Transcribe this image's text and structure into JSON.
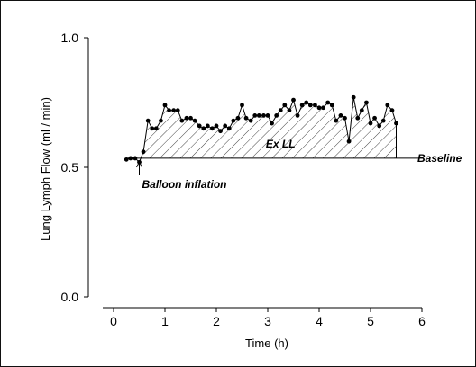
{
  "chart_data": {
    "type": "line",
    "title": "",
    "xlabel": "Time (h)",
    "ylabel": "Lung Lymph Flow (ml / min)",
    "xlim": [
      0,
      6
    ],
    "ylim": [
      0,
      1
    ],
    "x_ticks": [
      "0",
      "1",
      "2",
      "3",
      "4",
      "5",
      "6"
    ],
    "y_ticks": [
      "0.0",
      "0.5",
      "1.0"
    ],
    "grid": false,
    "baseline": 0.535,
    "baseline_end_x": 6.0,
    "shaded_region": {
      "label": "Ex LL",
      "x_start": 0.58,
      "x_end": 5.5
    },
    "annotations": {
      "balloon_inflation": {
        "label": "Balloon inflation",
        "x": 0.5
      },
      "baseline": {
        "label": "Baseline"
      }
    },
    "series": [
      {
        "x": [
          0.25,
          0.33,
          0.42,
          0.5,
          0.58,
          0.67,
          0.75,
          0.83,
          0.92,
          1.0,
          1.08,
          1.17,
          1.25,
          1.33,
          1.42,
          1.5,
          1.58,
          1.67,
          1.75,
          1.83,
          1.92,
          2.0,
          2.08,
          2.17,
          2.25,
          2.33,
          2.42,
          2.5,
          2.58,
          2.67,
          2.75,
          2.83,
          2.92,
          3.0,
          3.08,
          3.17,
          3.25,
          3.33,
          3.42,
          3.5,
          3.58,
          3.67,
          3.75,
          3.83,
          3.92,
          4.0,
          4.08,
          4.17,
          4.25,
          4.33,
          4.42,
          4.5,
          4.58,
          4.67,
          4.75,
          4.83,
          4.92,
          5.0,
          5.08,
          5.17,
          5.25,
          5.33,
          5.42,
          5.5
        ],
        "y": [
          0.53,
          0.535,
          0.535,
          0.52,
          0.56,
          0.68,
          0.65,
          0.65,
          0.68,
          0.74,
          0.72,
          0.72,
          0.72,
          0.68,
          0.69,
          0.69,
          0.68,
          0.66,
          0.65,
          0.66,
          0.65,
          0.66,
          0.64,
          0.66,
          0.65,
          0.68,
          0.69,
          0.74,
          0.69,
          0.68,
          0.7,
          0.7,
          0.7,
          0.7,
          0.67,
          0.7,
          0.72,
          0.74,
          0.72,
          0.76,
          0.7,
          0.74,
          0.75,
          0.74,
          0.74,
          0.73,
          0.73,
          0.75,
          0.74,
          0.68,
          0.7,
          0.69,
          0.6,
          0.77,
          0.69,
          0.72,
          0.75,
          0.67,
          0.69,
          0.66,
          0.68,
          0.74,
          0.72,
          0.67
        ]
      }
    ]
  }
}
